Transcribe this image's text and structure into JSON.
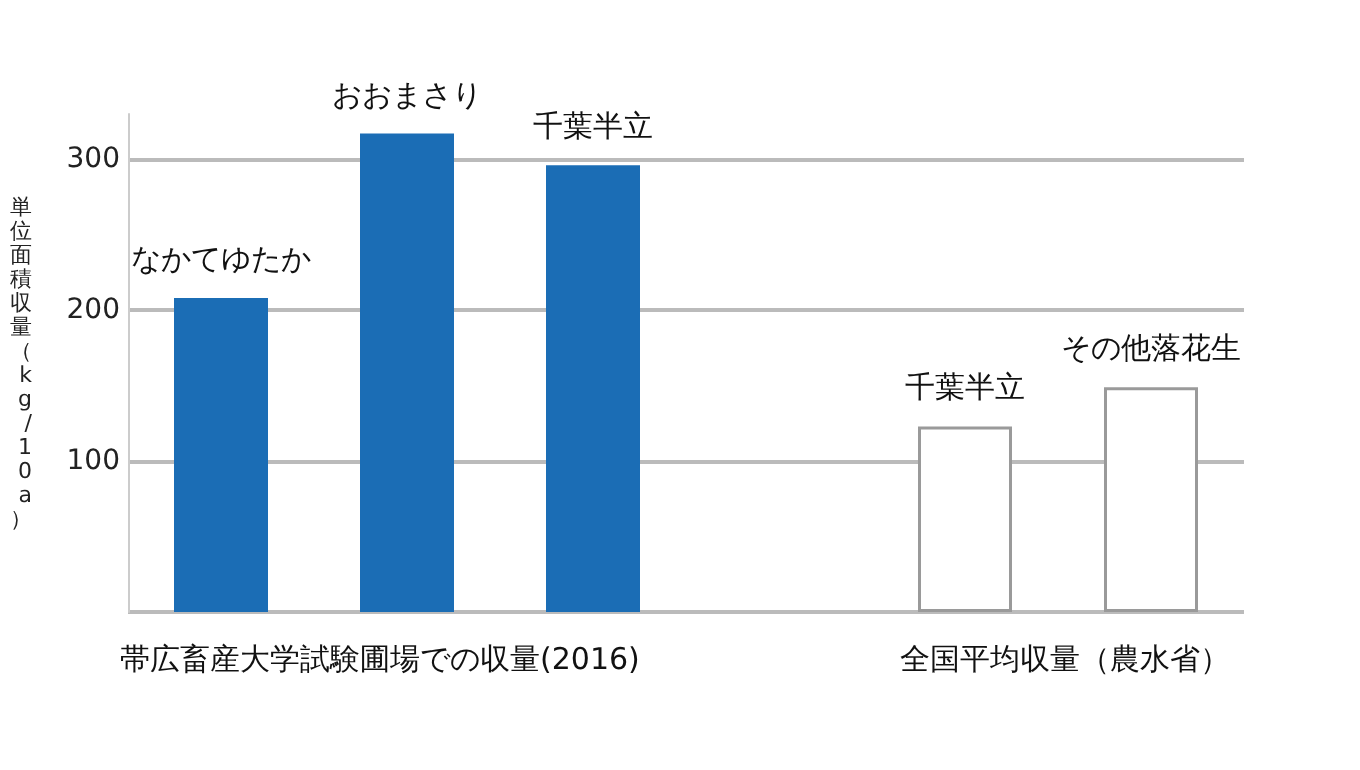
{
  "chart_data": {
    "type": "bar",
    "ylabel": "単位面積収量（kg/10a）",
    "categories": [
      "なかてゆたか",
      "おおまさり",
      "千葉半立",
      null,
      "千葉半立",
      "その他落花生"
    ],
    "values": [
      208,
      317,
      296,
      null,
      123,
      149
    ],
    "colors": [
      "#1b6db5",
      "#1b6db5",
      "#1b6db5",
      "#ffffff",
      "#ffffff",
      "#ffffff"
    ],
    "ylim": [
      0,
      330
    ],
    "yticks": [
      {
        "value": 0,
        "label": null
      },
      100,
      200,
      300
    ],
    "grid": "y",
    "tick_labels": "y",
    "annotations": [
      "帯広畜産大学試験圃場での収量(2016)",
      "全国平均収量（農水省）"
    ]
  }
}
